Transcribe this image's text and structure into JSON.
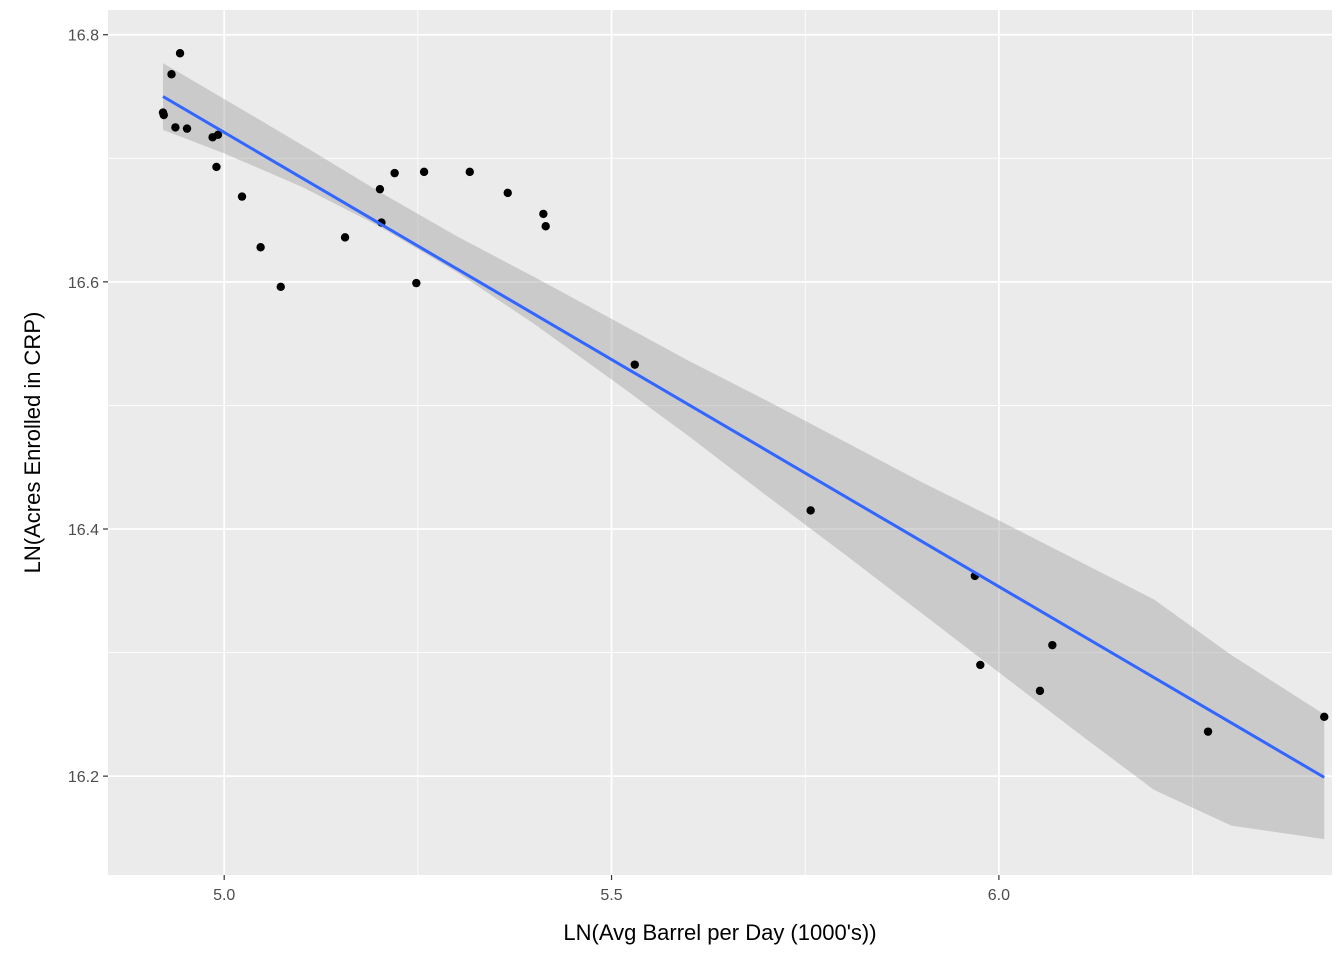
{
  "chart_data": {
    "type": "scatter",
    "title": "",
    "xlabel": "LN(Avg Barrel per Day (1000's))",
    "ylabel": "LN(Acres Enrolled in CRP)",
    "xlim": [
      4.85,
      6.43
    ],
    "ylim": [
      16.12,
      16.82
    ],
    "x_ticks": [
      5.0,
      5.5,
      6.0
    ],
    "x_tick_labels": [
      "5.0",
      "5.5",
      "6.0"
    ],
    "y_ticks": [
      16.2,
      16.4,
      16.6,
      16.8
    ],
    "y_tick_labels": [
      "16.2",
      "16.4",
      "16.6",
      "16.8"
    ],
    "grid": true,
    "legend": "none",
    "colors": {
      "panel_background": "#ebebeb",
      "grid": "#ffffff",
      "points": "#000000",
      "fit_line": "#3366ff",
      "confidence_band": "#999999"
    },
    "points": [
      {
        "x": 4.921,
        "y": 16.737
      },
      {
        "x": 4.922,
        "y": 16.735
      },
      {
        "x": 4.932,
        "y": 16.768
      },
      {
        "x": 4.937,
        "y": 16.725
      },
      {
        "x": 4.943,
        "y": 16.785
      },
      {
        "x": 4.952,
        "y": 16.724
      },
      {
        "x": 4.985,
        "y": 16.717
      },
      {
        "x": 4.992,
        "y": 16.719
      },
      {
        "x": 4.99,
        "y": 16.693
      },
      {
        "x": 5.023,
        "y": 16.669
      },
      {
        "x": 5.047,
        "y": 16.628
      },
      {
        "x": 5.073,
        "y": 16.596
      },
      {
        "x": 5.156,
        "y": 16.636
      },
      {
        "x": 5.201,
        "y": 16.675
      },
      {
        "x": 5.203,
        "y": 16.648
      },
      {
        "x": 5.22,
        "y": 16.688
      },
      {
        "x": 5.248,
        "y": 16.599
      },
      {
        "x": 5.258,
        "y": 16.689
      },
      {
        "x": 5.317,
        "y": 16.689
      },
      {
        "x": 5.366,
        "y": 16.672
      },
      {
        "x": 5.412,
        "y": 16.655
      },
      {
        "x": 5.415,
        "y": 16.645
      },
      {
        "x": 5.53,
        "y": 16.533
      },
      {
        "x": 5.757,
        "y": 16.415
      },
      {
        "x": 5.969,
        "y": 16.362
      },
      {
        "x": 5.976,
        "y": 16.29
      },
      {
        "x": 6.053,
        "y": 16.269
      },
      {
        "x": 6.069,
        "y": 16.306
      },
      {
        "x": 6.27,
        "y": 16.236
      },
      {
        "x": 6.42,
        "y": 16.248
      }
    ],
    "fit_line": {
      "method": "lm",
      "x_start": 4.921,
      "x_end": 6.42,
      "y_start": 16.75,
      "y_end": 16.199
    },
    "confidence_band": [
      {
        "x": 4.921,
        "lower": 16.723,
        "upper": 16.777
      },
      {
        "x": 5.0,
        "lower": 16.704,
        "upper": 16.748
      },
      {
        "x": 5.1,
        "lower": 16.677,
        "upper": 16.711
      },
      {
        "x": 5.2,
        "lower": 16.645,
        "upper": 16.673
      },
      {
        "x": 5.3,
        "lower": 16.608,
        "upper": 16.637
      },
      {
        "x": 5.4,
        "lower": 16.566,
        "upper": 16.604
      },
      {
        "x": 5.5,
        "lower": 16.521,
        "upper": 16.57
      },
      {
        "x": 5.6,
        "lower": 16.475,
        "upper": 16.536
      },
      {
        "x": 5.7,
        "lower": 16.427,
        "upper": 16.504
      },
      {
        "x": 5.8,
        "lower": 16.38,
        "upper": 16.471
      },
      {
        "x": 5.9,
        "lower": 16.332,
        "upper": 16.438
      },
      {
        "x": 6.0,
        "lower": 16.284,
        "upper": 16.407
      },
      {
        "x": 6.1,
        "lower": 16.236,
        "upper": 16.375
      },
      {
        "x": 6.2,
        "lower": 16.189,
        "upper": 16.343
      },
      {
        "x": 6.3,
        "lower": 16.16,
        "upper": 16.298
      },
      {
        "x": 6.42,
        "lower": 16.149,
        "upper": 16.25
      }
    ]
  }
}
